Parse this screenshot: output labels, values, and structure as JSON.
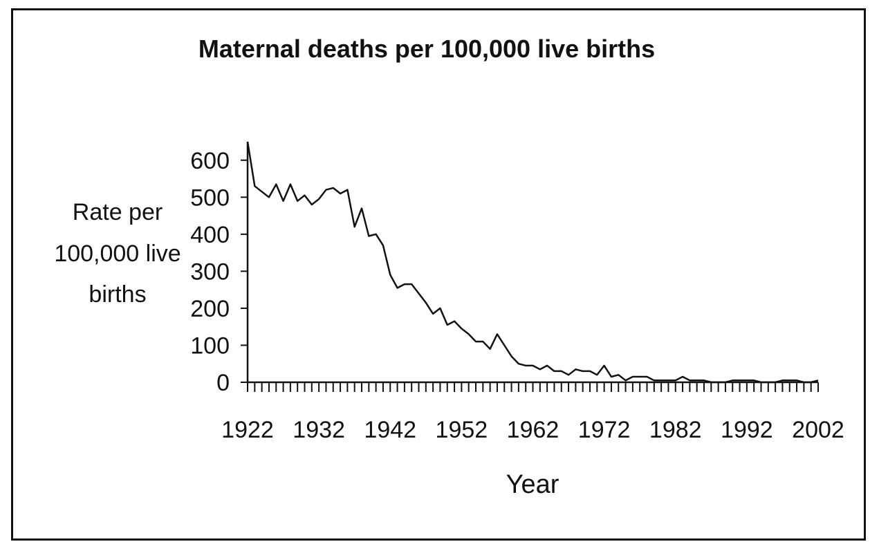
{
  "chart_data": {
    "type": "line",
    "title": "Maternal deaths per 100,000 live births",
    "xlabel": "Year",
    "ylabel_lines": [
      "Rate per",
      "100,000 live",
      "births"
    ],
    "xlim": [
      1922,
      2002
    ],
    "ylim": [
      0,
      650
    ],
    "xticks": [
      1922,
      1932,
      1942,
      1952,
      1962,
      1972,
      1982,
      1992,
      2002
    ],
    "yticks": [
      0,
      100,
      200,
      300,
      400,
      500,
      600
    ],
    "grid": false,
    "legend": "none",
    "line_color": "#111111",
    "series": [
      {
        "x": [
          1922,
          1923,
          1924,
          1925,
          1926,
          1927,
          1928,
          1929,
          1930,
          1931,
          1932,
          1933,
          1934,
          1935,
          1936,
          1937,
          1938,
          1939,
          1940,
          1941,
          1942,
          1943,
          1944,
          1945,
          1946,
          1947,
          1948,
          1949,
          1950,
          1951,
          1952,
          1953,
          1954,
          1955,
          1956,
          1957,
          1958,
          1959,
          1960,
          1961,
          1962,
          1963,
          1964,
          1965,
          1966,
          1967,
          1968,
          1969,
          1970,
          1971,
          1972,
          1973,
          1974,
          1975,
          1976,
          1977,
          1978,
          1979,
          1980,
          1981,
          1982,
          1983,
          1984,
          1985,
          1986,
          1987,
          1988,
          1989,
          1990,
          1991,
          1992,
          1993,
          1994,
          1995,
          1996,
          1997,
          1998,
          1999,
          2000,
          2001,
          2002
        ],
        "values": [
          650,
          530,
          515,
          500,
          535,
          490,
          535,
          490,
          505,
          480,
          495,
          520,
          525,
          510,
          520,
          420,
          470,
          395,
          400,
          370,
          290,
          255,
          265,
          265,
          240,
          215,
          185,
          200,
          155,
          165,
          145,
          130,
          110,
          110,
          90,
          130,
          100,
          70,
          50,
          45,
          45,
          35,
          45,
          30,
          30,
          20,
          35,
          30,
          30,
          20,
          45,
          15,
          20,
          5,
          15,
          15,
          15,
          5,
          5,
          5,
          5,
          15,
          5,
          5,
          5,
          0,
          0,
          0,
          5,
          5,
          5,
          5,
          0,
          0,
          0,
          5,
          5,
          5,
          0,
          0,
          5
        ]
      }
    ]
  }
}
